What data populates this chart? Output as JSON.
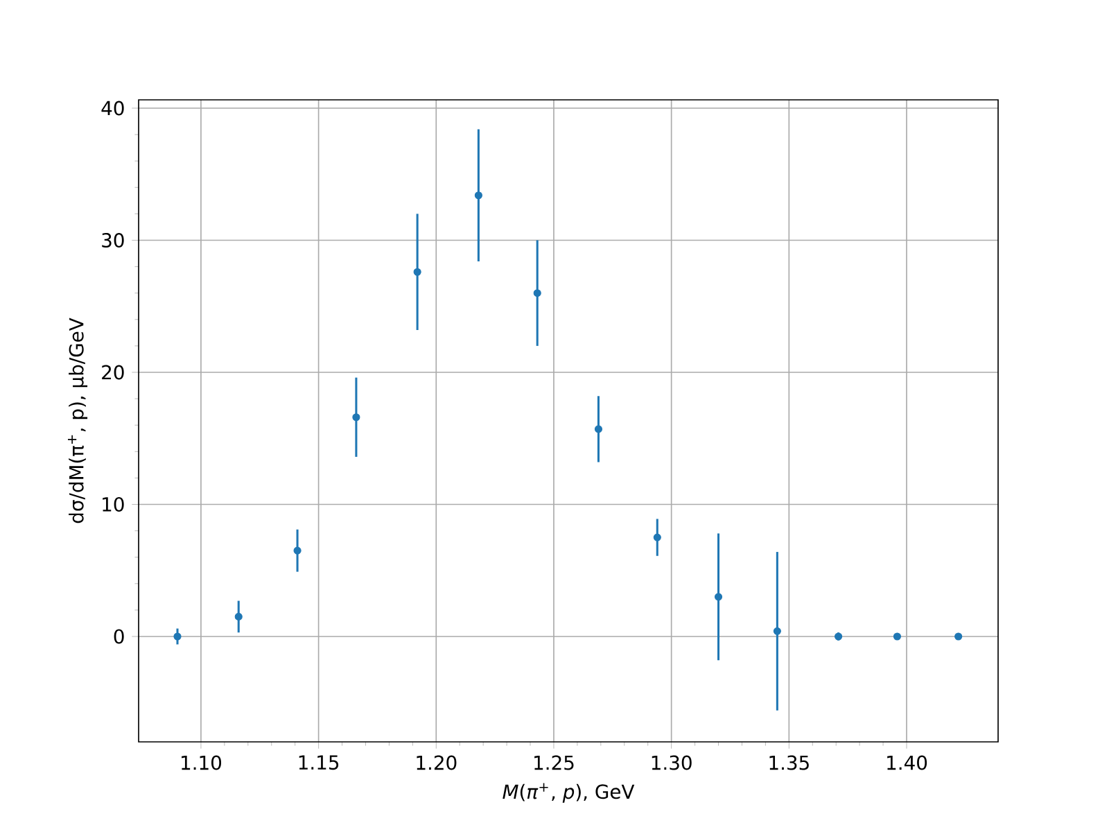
{
  "chart_data": {
    "type": "scatter",
    "xlabel": "*M*(*π*$^{+}$, *p*), GeV",
    "ylabel": "dσ/dM(π$^{+}$, p), μb/GeV",
    "x": [
      1.09,
      1.116,
      1.141,
      1.166,
      1.192,
      1.218,
      1.243,
      1.269,
      1.294,
      1.32,
      1.345,
      1.371,
      1.396,
      1.422
    ],
    "values": [
      0.0,
      1.5,
      6.5,
      16.6,
      27.6,
      33.4,
      26.0,
      15.7,
      7.5,
      3.0,
      0.4,
      0.0,
      0.0,
      0.0
    ],
    "errors": [
      0.6,
      1.2,
      1.6,
      3.0,
      4.4,
      5.0,
      4.0,
      2.5,
      1.4,
      4.8,
      6.0,
      0.3,
      null,
      null
    ],
    "color": "#1f77b4",
    "marker": "circle",
    "grid": true,
    "xlim": [
      1.0735,
      1.4389
    ],
    "ylim": [
      -7.98,
      40.63
    ],
    "xticks": [
      {
        "value": 1.1,
        "label": "1.10"
      },
      {
        "value": 1.15,
        "label": "1.15"
      },
      {
        "value": 1.2,
        "label": "1.20"
      },
      {
        "value": 1.25,
        "label": "1.25"
      },
      {
        "value": 1.3,
        "label": "1.30"
      },
      {
        "value": 1.35,
        "label": "1.35"
      },
      {
        "value": 1.4,
        "label": "1.40"
      }
    ],
    "yticks": [
      0,
      10,
      20,
      30,
      40
    ]
  }
}
